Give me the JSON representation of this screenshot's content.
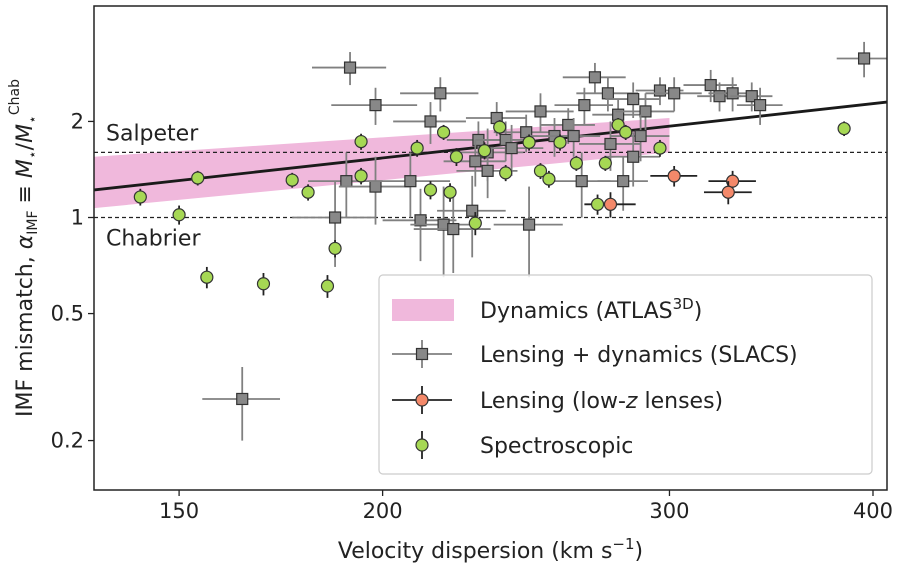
{
  "chart_data": {
    "type": "scatter",
    "xlabel": "Velocity dispersion (km s⁻¹)",
    "ylabel": "IMF mismatch, αIMF ≡ M⋆/M⋆Chab",
    "xscale": "log",
    "yscale": "log",
    "xlim": [
      133,
      408
    ],
    "ylim": [
      0.14,
      4.6
    ],
    "xticks": [
      150,
      200,
      300,
      400
    ],
    "yticks": [
      0.2,
      0.5,
      1,
      2
    ],
    "xtick_labels": [
      "150",
      "200",
      "300",
      "400"
    ],
    "ytick_labels": [
      "0.2",
      "0.5",
      "1",
      "2"
    ],
    "grid": false,
    "legend_position": "lower-right",
    "reference_lines": [
      {
        "label": "Salpeter",
        "y": 1.6
      },
      {
        "label": "Chabrier",
        "y": 1.0
      }
    ],
    "fit_line": {
      "x": [
        133,
        408
      ],
      "y": [
        1.22,
        2.3
      ],
      "color": "#1a1a1a"
    },
    "atlas_band": {
      "name": "Dynamics (ATLAS3D)",
      "color": "#f0b8dc",
      "x": [
        133,
        300
      ],
      "y_low": [
        1.07,
        1.6
      ],
      "y_high": [
        1.55,
        2.05
      ]
    },
    "series": [
      {
        "name": "Lensing + dynamics (SLACS)",
        "marker": "square",
        "color": "#888888",
        "edge": "#333333",
        "points": [
          [
            191,
            2.95,
            10,
            0.35
          ],
          [
            198,
            2.25,
            12,
            0.3
          ],
          [
            214,
            2.0,
            11,
            0.3
          ],
          [
            217,
            2.45,
            12,
            0.3
          ],
          [
            235,
            2.05,
            10,
            0.25
          ],
          [
            229,
            1.75,
            10,
            0.25
          ],
          [
            232,
            1.6,
            12,
            0.3
          ],
          [
            238,
            1.75,
            10,
            0.25
          ],
          [
            245,
            1.85,
            11,
            0.25
          ],
          [
            250,
            2.15,
            12,
            0.3
          ],
          [
            255,
            1.8,
            10,
            0.25
          ],
          [
            260,
            1.95,
            10,
            0.25
          ],
          [
            266,
            2.25,
            11,
            0.3
          ],
          [
            270,
            2.75,
            12,
            0.3
          ],
          [
            275,
            2.45,
            12,
            0.3
          ],
          [
            279,
            2.1,
            10,
            0.25
          ],
          [
            285,
            2.35,
            11,
            0.3
          ],
          [
            290,
            2.15,
            12,
            0.3
          ],
          [
            296,
            2.5,
            10,
            0.25
          ],
          [
            302,
            2.45,
            12,
            0.3
          ],
          [
            318,
            2.6,
            12,
            0.3
          ],
          [
            322,
            2.4,
            10,
            0.25
          ],
          [
            328,
            2.45,
            11,
            0.3
          ],
          [
            337,
            2.4,
            10,
            0.25
          ],
          [
            341,
            2.25,
            11,
            0.3
          ],
          [
            395,
            3.15,
            15,
            0.4
          ],
          [
            190,
            1.3,
            10,
            0.3
          ],
          [
            187,
            1.0,
            11,
            0.3
          ],
          [
            198,
            1.25,
            10,
            0.3
          ],
          [
            208,
            1.3,
            12,
            0.3
          ],
          [
            211,
            0.98,
            11,
            0.25
          ],
          [
            218,
            0.95,
            10,
            0.3
          ],
          [
            221,
            0.92,
            12,
            0.25
          ],
          [
            227,
            1.05,
            11,
            0.3
          ],
          [
            232,
            1.4,
            10,
            0.25
          ],
          [
            246,
            0.95,
            12,
            0.3
          ],
          [
            265,
            1.3,
            11,
            0.3
          ],
          [
            281,
            1.3,
            10,
            0.25
          ],
          [
            285,
            1.55,
            11,
            0.3
          ],
          [
            288,
            1.8,
            12,
            0.3
          ],
          [
            228,
            1.5,
            10,
            0.25
          ],
          [
            240,
            1.65,
            11,
            0.3
          ],
          [
            262,
            1.8,
            10,
            0.25
          ],
          [
            276,
            1.7,
            12,
            0.3
          ],
          [
            164,
            0.27,
            9,
            0.07
          ]
        ]
      },
      {
        "name": "Lensing (low-z lenses)",
        "marker": "circle",
        "color": "#f4896a",
        "edge": "#333333",
        "points": [
          [
            276,
            1.1,
            10,
            0.1
          ],
          [
            302,
            1.35,
            10,
            0.1
          ],
          [
            328,
            1.3,
            11,
            0.1
          ],
          [
            326,
            1.2,
            11,
            0.1
          ]
        ]
      },
      {
        "name": "Spectroscopic",
        "marker": "circle",
        "color": "#a6d854",
        "edge": "#333333",
        "points": [
          [
            142,
            1.16,
            0,
            0.07
          ],
          [
            150,
            1.02,
            0,
            0.07
          ],
          [
            154,
            1.33,
            0,
            0.07
          ],
          [
            156,
            0.65,
            0,
            0.05
          ],
          [
            169,
            0.62,
            0,
            0.05
          ],
          [
            176,
            1.31,
            0,
            0.07
          ],
          [
            180,
            1.2,
            0,
            0.07
          ],
          [
            185,
            0.61,
            0,
            0.05
          ],
          [
            187,
            0.8,
            0,
            0.05
          ],
          [
            194,
            1.73,
            0,
            0.1
          ],
          [
            194,
            1.35,
            0,
            0.08
          ],
          [
            210,
            1.65,
            0,
            0.1
          ],
          [
            214,
            1.22,
            0,
            0.08
          ],
          [
            218,
            1.85,
            0,
            0.1
          ],
          [
            220,
            1.2,
            0,
            0.08
          ],
          [
            222,
            1.55,
            0,
            0.1
          ],
          [
            228,
            0.96,
            0,
            0.08
          ],
          [
            231,
            1.62,
            0,
            0.1
          ],
          [
            236,
            1.92,
            0,
            0.1
          ],
          [
            238,
            1.38,
            0,
            0.08
          ],
          [
            246,
            1.72,
            0,
            0.1
          ],
          [
            250,
            1.4,
            0,
            0.08
          ],
          [
            253,
            1.32,
            0,
            0.08
          ],
          [
            257,
            1.72,
            0,
            0.1
          ],
          [
            263,
            1.48,
            0,
            0.08
          ],
          [
            271,
            1.1,
            0,
            0.08
          ],
          [
            274,
            1.48,
            0,
            0.08
          ],
          [
            279,
            1.95,
            0,
            0.1
          ],
          [
            282,
            1.85,
            0,
            0.1
          ],
          [
            296,
            1.65,
            0,
            0.1
          ],
          [
            384,
            1.9,
            0,
            0.1
          ]
        ]
      }
    ],
    "legend": [
      {
        "key": "atlas",
        "label": "Dynamics (ATLAS",
        "sup": "3D",
        "suffix": ")"
      },
      {
        "key": "slacs",
        "label": "Lensing + dynamics (SLACS)"
      },
      {
        "key": "lowz",
        "label": "Lensing (low-",
        "ital": "z",
        "suffix": " lenses)"
      },
      {
        "key": "spec",
        "label": "Spectroscopic"
      }
    ]
  }
}
